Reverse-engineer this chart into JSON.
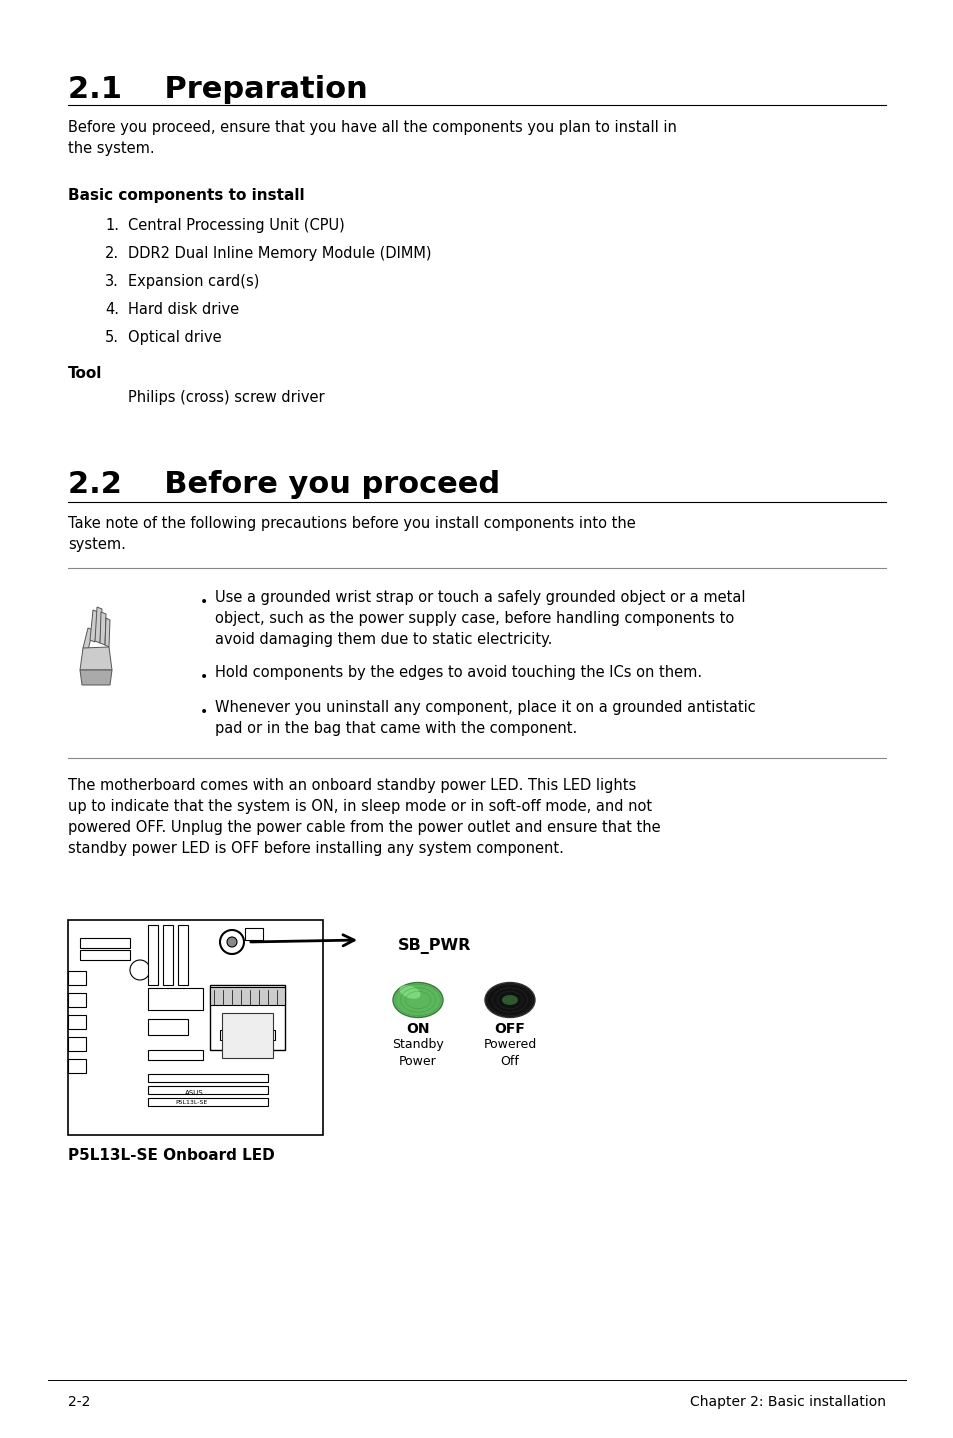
{
  "bg_color": "#ffffff",
  "title1": "2.1    Preparation",
  "title2": "2.2    Before you proceed",
  "intro1": "Before you proceed, ensure that you have all the components you plan to install in\nthe system.",
  "section_basic": "Basic components to install",
  "components": [
    "Central Processing Unit (CPU)",
    "DDR2 Dual Inline Memory Module (DIMM)",
    "Expansion card(s)",
    "Hard disk drive",
    "Optical drive"
  ],
  "tool_label": "Tool",
  "tool_text": "Philips (cross) screw driver",
  "intro2": "Take note of the following precautions before you install components into the\nsystem.",
  "bullets": [
    "Use a grounded wrist strap or touch a safely grounded object or a metal\nobject, such as the power supply case, before handling components to\navoid damaging them due to static electricity.",
    "Hold components by the edges to avoid touching the ICs on them.",
    "Whenever you uninstall any component, place it on a grounded antistatic\npad or in the bag that came with the component."
  ],
  "para3": "The motherboard comes with an onboard standby power LED. This LED lights\nup to indicate that the system is ON, in sleep mode or in soft-off mode, and not\npowered OFF. Unplug the power cable from the power outlet and ensure that the\nstandby power LED is OFF before installing any system component.",
  "diagram_label": "SB_PWR",
  "on_label": "ON",
  "on_sub": "Standby\nPower",
  "off_label": "OFF",
  "off_sub": "Powered\nOff",
  "board_caption": "P5L13L-SE Onboard LED",
  "footer_left": "2-2",
  "footer_right": "Chapter 2: Basic installation"
}
